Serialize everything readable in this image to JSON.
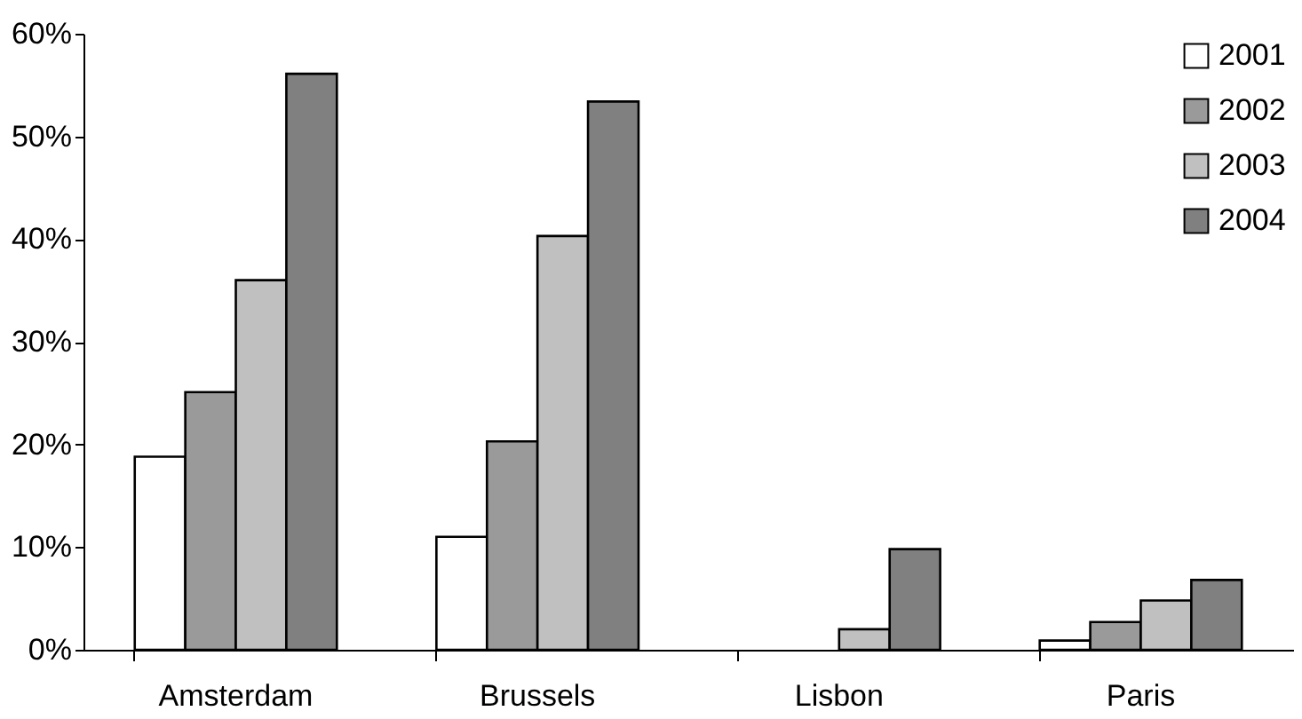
{
  "chart_data": {
    "type": "bar",
    "categories": [
      "Amsterdam",
      "Brussels",
      "Lisbon",
      "Paris"
    ],
    "series": [
      {
        "name": "2001",
        "color": "#ffffff",
        "values": [
          18.8,
          11.0,
          null,
          0.9
        ]
      },
      {
        "name": "2002",
        "color": "#9a9a9a",
        "values": [
          25.1,
          20.3,
          null,
          2.7
        ]
      },
      {
        "name": "2003",
        "color": "#c0c0c0",
        "values": [
          36.0,
          40.3,
          2.0,
          4.8
        ]
      },
      {
        "name": "2004",
        "color": "#808080",
        "values": [
          56.1,
          53.4,
          9.8,
          6.8
        ]
      }
    ],
    "ylim": [
      0,
      60
    ],
    "yticks": [
      {
        "value": 0,
        "label": "0%"
      },
      {
        "value": 10,
        "label": "10%"
      },
      {
        "value": 20,
        "label": "20%"
      },
      {
        "value": 30,
        "label": "30%"
      },
      {
        "value": 40,
        "label": "40%"
      },
      {
        "value": 50,
        "label": "50%"
      },
      {
        "value": 60,
        "label": "60%"
      }
    ],
    "grid": false,
    "legend": "top right"
  }
}
